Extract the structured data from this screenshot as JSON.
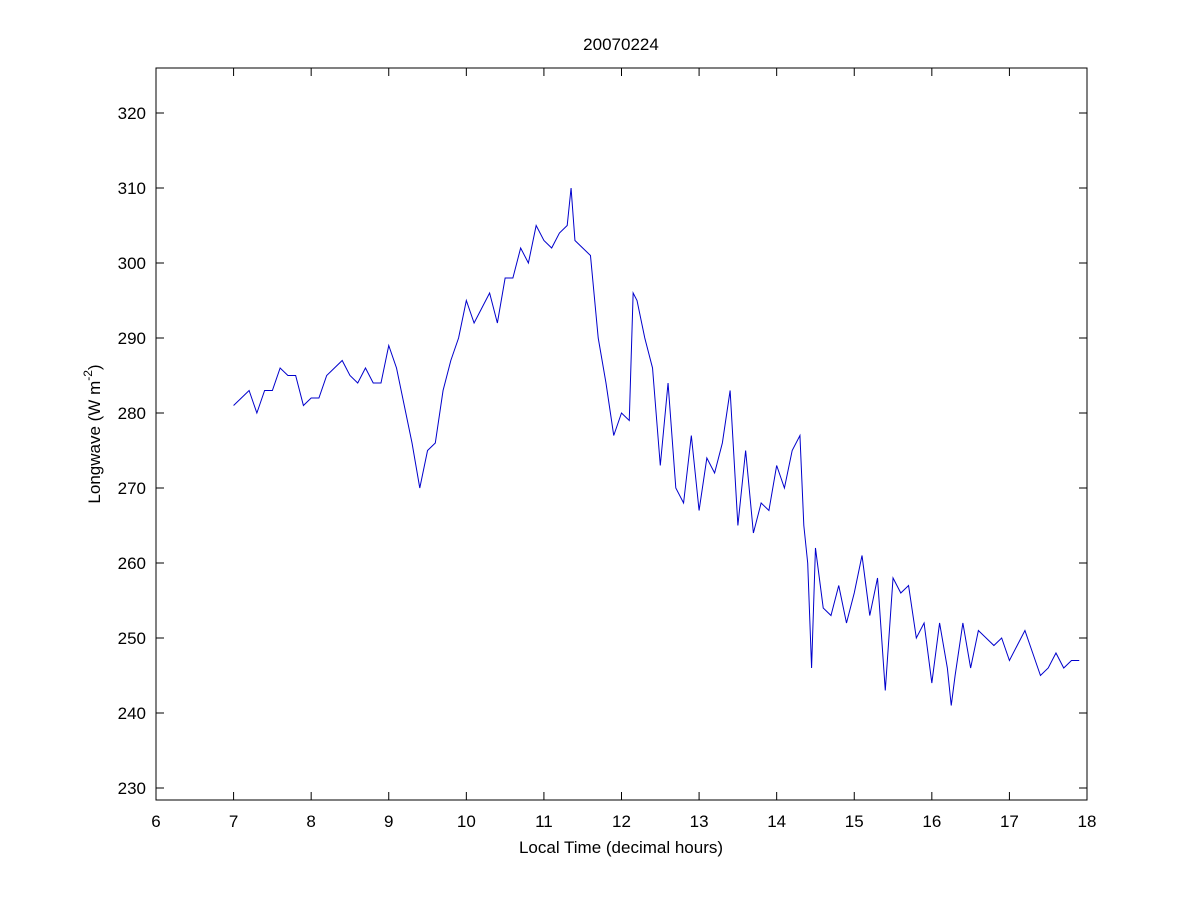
{
  "chart_data": {
    "type": "line",
    "title": "20070224",
    "xlabel": "Local Time (decimal hours)",
    "ylabel": {
      "text": "Longwave (W m",
      "superscript": "-2",
      "suffix": ")"
    },
    "xlim": [
      6,
      18
    ],
    "xticks": [
      6,
      7,
      8,
      9,
      10,
      11,
      12,
      13,
      14,
      15,
      16,
      17,
      18
    ],
    "ylim": [
      228.4,
      326
    ],
    "yticks": [
      230,
      240,
      250,
      260,
      270,
      280,
      290,
      300,
      310,
      320
    ],
    "grid": false,
    "series": [
      {
        "name": "Longwave",
        "color": "#0000cc",
        "x": [
          7.0,
          7.1,
          7.2,
          7.3,
          7.4,
          7.5,
          7.6,
          7.7,
          7.8,
          7.9,
          8.0,
          8.1,
          8.2,
          8.3,
          8.4,
          8.5,
          8.6,
          8.7,
          8.8,
          8.9,
          9.0,
          9.1,
          9.2,
          9.3,
          9.4,
          9.5,
          9.6,
          9.7,
          9.8,
          9.9,
          10.0,
          10.1,
          10.2,
          10.3,
          10.4,
          10.5,
          10.6,
          10.7,
          10.8,
          10.9,
          11.0,
          11.1,
          11.2,
          11.3,
          11.35,
          11.4,
          11.5,
          11.6,
          11.7,
          11.8,
          11.9,
          12.0,
          12.1,
          12.15,
          12.2,
          12.3,
          12.4,
          12.5,
          12.6,
          12.7,
          12.8,
          12.9,
          13.0,
          13.1,
          13.2,
          13.3,
          13.4,
          13.5,
          13.6,
          13.7,
          13.8,
          13.9,
          14.0,
          14.1,
          14.2,
          14.3,
          14.35,
          14.4,
          14.45,
          14.5,
          14.6,
          14.7,
          14.8,
          14.9,
          15.0,
          15.1,
          15.2,
          15.3,
          15.4,
          15.5,
          15.6,
          15.7,
          15.8,
          15.9,
          16.0,
          16.1,
          16.2,
          16.25,
          16.3,
          16.4,
          16.5,
          16.6,
          16.7,
          16.8,
          16.9,
          17.0,
          17.1,
          17.2,
          17.3,
          17.4,
          17.5,
          17.6,
          17.7,
          17.8,
          17.9
        ],
        "values": [
          281,
          282,
          283,
          280,
          283,
          283,
          286,
          285,
          285,
          281,
          282,
          282,
          285,
          286,
          287,
          285,
          284,
          286,
          284,
          284,
          289,
          286,
          281,
          276,
          270,
          275,
          276,
          283,
          287,
          290,
          295,
          292,
          294,
          296,
          292,
          298,
          298,
          302,
          300,
          305,
          303,
          302,
          304,
          305,
          310,
          303,
          302,
          301,
          290,
          284,
          277,
          280,
          279,
          296,
          295,
          290,
          286,
          273,
          284,
          270,
          268,
          277,
          267,
          274,
          272,
          276,
          283,
          265,
          275,
          264,
          268,
          267,
          273,
          270,
          275,
          277,
          265,
          260,
          246,
          262,
          254,
          253,
          257,
          252,
          256,
          261,
          253,
          258,
          243,
          258,
          256,
          257,
          250,
          252,
          244,
          252,
          246,
          241,
          245,
          252,
          246,
          251,
          250,
          249,
          250,
          247,
          249,
          251,
          248,
          245,
          246,
          248,
          246,
          247,
          247
        ]
      }
    ]
  }
}
